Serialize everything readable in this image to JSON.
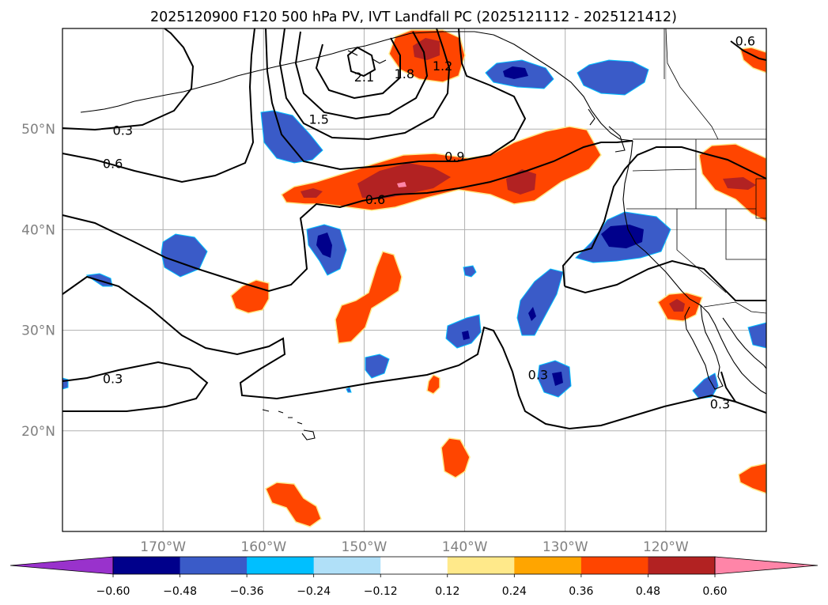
{
  "title": "2025120900 F120 500 hPa PV, IVT Landfall PC (2025121112 - 2025121412)",
  "map": {
    "lon_range": [
      -180,
      -110
    ],
    "lat_range": [
      10,
      60
    ],
    "lon_ticks": [
      {
        "lon": -170,
        "label": "170°W"
      },
      {
        "lon": -160,
        "label": "160°W"
      },
      {
        "lon": -150,
        "label": "150°W"
      },
      {
        "lon": -140,
        "label": "140°W"
      },
      {
        "lon": -130,
        "label": "130°W"
      },
      {
        "lon": -120,
        "label": "120°W"
      }
    ],
    "lat_ticks": [
      {
        "lat": 20,
        "label": "20°N"
      },
      {
        "lat": 30,
        "label": "30°N"
      },
      {
        "lat": 40,
        "label": "40°N"
      },
      {
        "lat": 50,
        "label": "50°N"
      }
    ],
    "gridlines": true,
    "contour_labels": [
      {
        "text": "0.3",
        "lon": -174,
        "lat": 49.9
      },
      {
        "text": "0.6",
        "lon": -175,
        "lat": 46.6
      },
      {
        "text": "0.3",
        "lon": -175,
        "lat": 25.2
      },
      {
        "text": "0.6",
        "lon": -148.9,
        "lat": 43.0
      },
      {
        "text": "0.9",
        "lon": -141,
        "lat": 47.3
      },
      {
        "text": "1.5",
        "lon": -154.5,
        "lat": 51.0
      },
      {
        "text": "2.1",
        "lon": -150,
        "lat": 55.2
      },
      {
        "text": "1.8",
        "lon": -146,
        "lat": 55.5
      },
      {
        "text": "1.2",
        "lon": -142.2,
        "lat": 56.3
      },
      {
        "text": "0.3",
        "lon": -132.7,
        "lat": 25.6
      },
      {
        "text": "0.3",
        "lon": -114.6,
        "lat": 22.7
      },
      {
        "text": "0.6",
        "lon": -112.1,
        "lat": 58.8
      }
    ]
  },
  "colorbar": {
    "levels": [
      -0.6,
      -0.48,
      -0.36,
      -0.24,
      -0.12,
      0.12,
      0.24,
      0.36,
      0.48,
      0.6
    ],
    "tick_labels": [
      "−0.60",
      "−0.48",
      "−0.36",
      "−0.24",
      "−0.12",
      "0.12",
      "0.24",
      "0.36",
      "0.48",
      "0.60"
    ],
    "colors": [
      "#00008b",
      "#3a5bc8",
      "#00bfff",
      "#b0e0f8",
      "#ffffff",
      "#ffe98a",
      "#ffa500",
      "#ff4500",
      "#b22222",
      "#ff85a8"
    ],
    "under_color": "#9932cc",
    "over_color": "#ff85a8"
  },
  "colors": {
    "land": "#ffffff",
    "grid": "#b0b0b0",
    "contour": "#000000",
    "tick_text": "#808080"
  }
}
